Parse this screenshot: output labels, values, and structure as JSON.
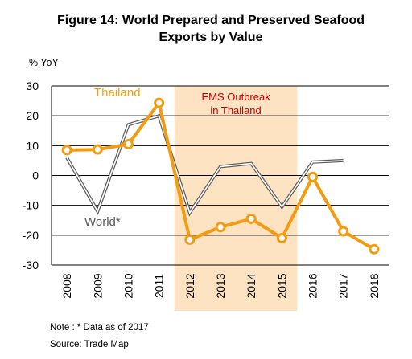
{
  "chart_data": {
    "type": "line",
    "title_line1": "Figure 14: World Prepared and Preserved Seafood",
    "title_line2": "Exports by Value",
    "ylabel": "% YoY",
    "ylim": [
      -30,
      30
    ],
    "yticks": [
      30,
      20,
      10,
      0,
      -10,
      -20,
      -30
    ],
    "x": [
      "2008",
      "2009",
      "2010",
      "2011",
      "2012",
      "2013",
      "2014",
      "2015",
      "2016",
      "2017",
      "2018"
    ],
    "grid": "horizontal",
    "highlight": {
      "from": "2012",
      "to": "2015",
      "label_line1": "EMS Outbreak",
      "label_line2": "in Thailand",
      "color": "#fde3c1"
    },
    "series": [
      {
        "name": "Thailand",
        "color": "#f39c12",
        "markers": true,
        "values": [
          8.5,
          8.7,
          10.5,
          24.3,
          -21.5,
          -17.3,
          -14.5,
          -21,
          -0.5,
          -18.7,
          -24.7
        ]
      },
      {
        "name": "World*",
        "color": "#5a5a5a",
        "markers": false,
        "values": [
          6,
          -12,
          17,
          20,
          -12.5,
          3,
          4,
          -10.5,
          4.5,
          5,
          null
        ]
      }
    ],
    "notes": [
      "Note : * Data as of 2017",
      "Source: Trade Map"
    ]
  }
}
